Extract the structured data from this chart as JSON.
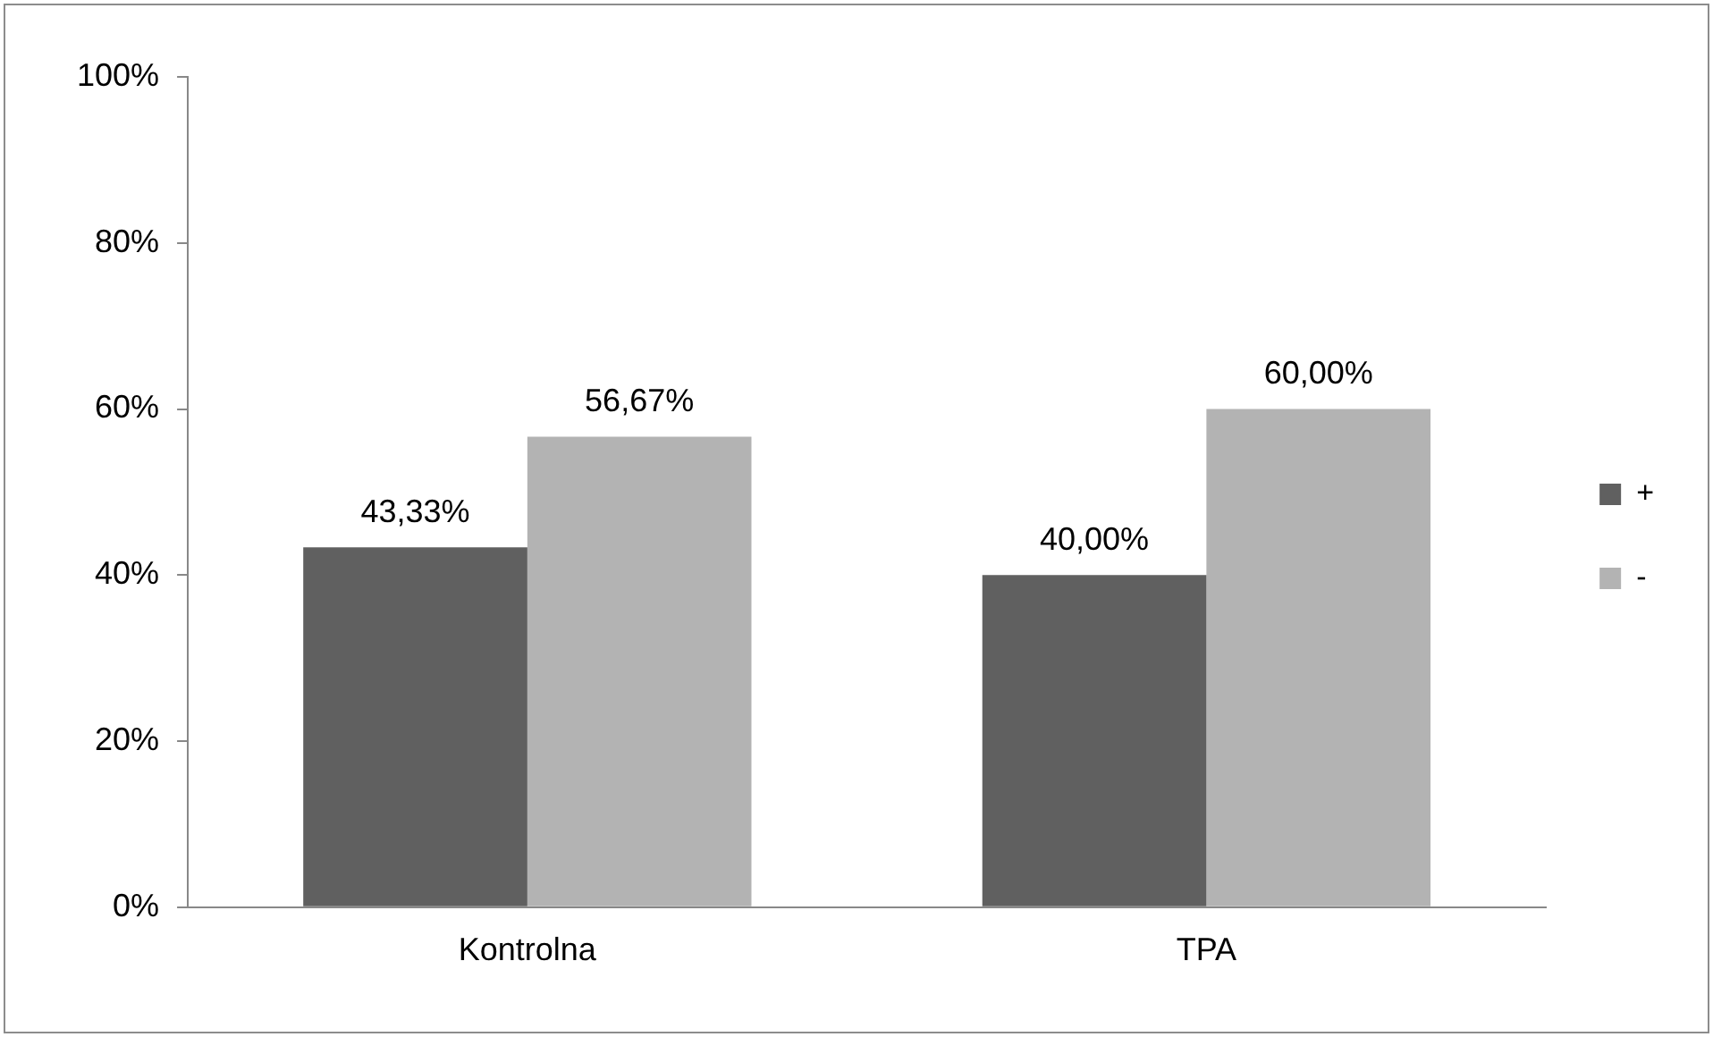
{
  "chart_data": {
    "type": "bar",
    "categories": [
      "Kontrolna",
      "TPA"
    ],
    "series": [
      {
        "name": "+",
        "color": "#606060",
        "values": [
          43.33,
          40.0
        ],
        "value_labels": [
          "43,33%",
          "40,00%"
        ]
      },
      {
        "name": "-",
        "color": "#b3b3b3",
        "values": [
          56.67,
          60.0
        ],
        "value_labels": [
          "56,67%",
          "60,00%"
        ]
      }
    ],
    "ylim": [
      0,
      100
    ],
    "yticks": [
      {
        "value": 0,
        "label": "0%"
      },
      {
        "value": 20,
        "label": "20%"
      },
      {
        "value": 40,
        "label": "40%"
      },
      {
        "value": 60,
        "label": "60%"
      },
      {
        "value": 80,
        "label": "80%"
      },
      {
        "value": 100,
        "label": "100%"
      }
    ],
    "grid": false,
    "legend": "right"
  }
}
